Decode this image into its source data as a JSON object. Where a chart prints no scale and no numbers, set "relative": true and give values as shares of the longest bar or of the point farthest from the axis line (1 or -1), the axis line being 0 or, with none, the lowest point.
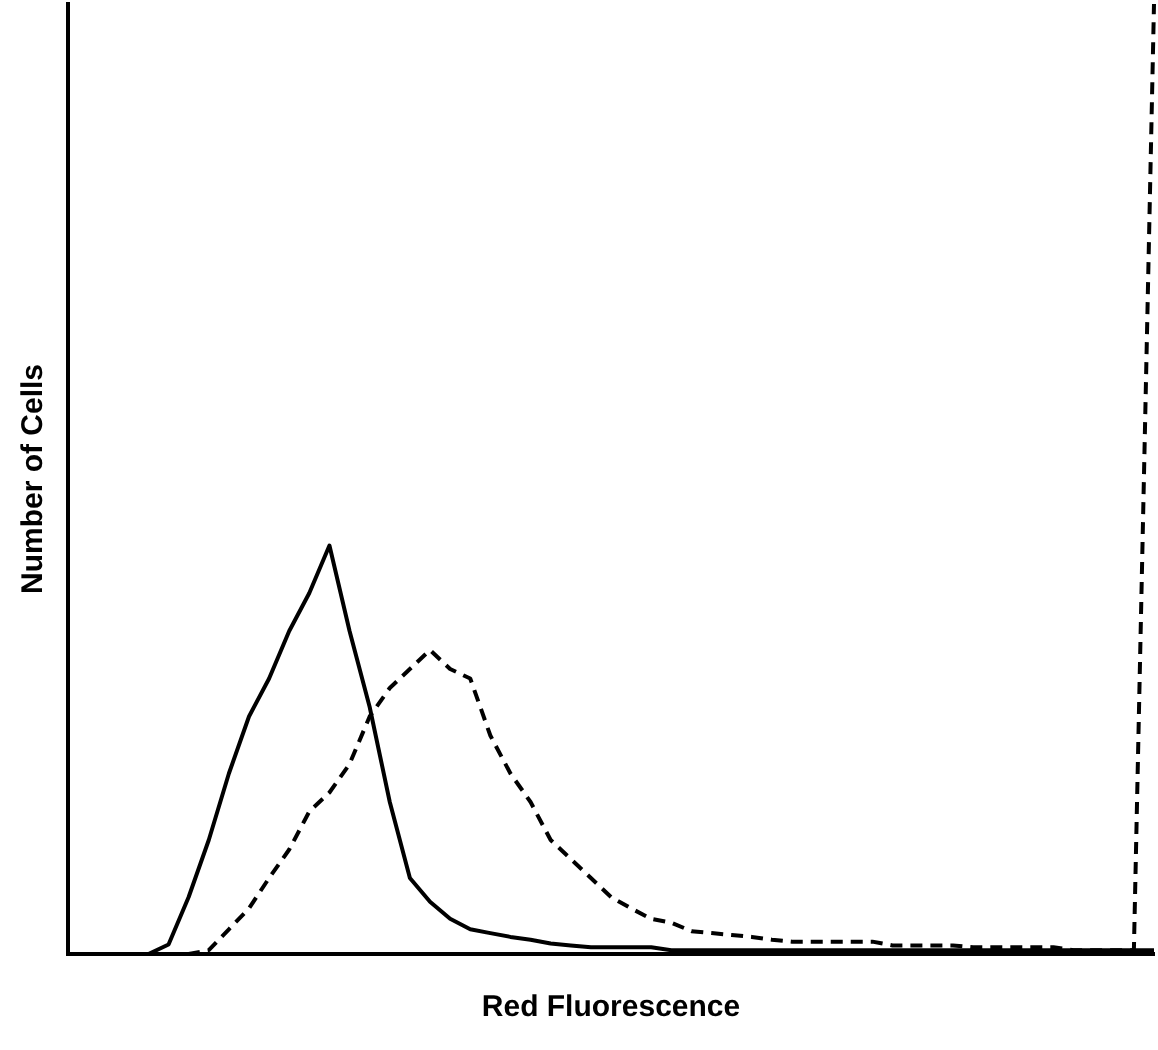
{
  "chart_data": {
    "type": "line",
    "relative": true,
    "xlabel": "Red Fluorescence",
    "ylabel": "Number of Cells",
    "grid": false,
    "legend": false,
    "marker": "none",
    "categories": [
      null,
      null,
      null,
      null,
      null,
      null,
      null,
      null,
      null,
      null,
      null,
      null,
      null,
      null,
      null,
      null,
      null,
      null,
      null,
      null,
      null,
      null,
      null,
      null,
      null,
      null,
      null,
      null,
      null,
      null,
      null,
      null,
      null,
      null,
      null,
      null,
      null,
      null,
      null,
      null,
      null,
      null,
      null,
      null,
      null,
      null,
      null,
      null,
      null,
      null,
      null,
      null,
      null,
      null,
      null
    ],
    "series": [
      {
        "color": "#000000",
        "line_style": "solid",
        "values": [
          0,
          0,
          0,
          0,
          0,
          0.01,
          0.06,
          0.12,
          0.19,
          0.25,
          0.29,
          0.34,
          0.38,
          0.43,
          0.34,
          0.26,
          0.16,
          0.08,
          0.055,
          0.037,
          0.026,
          0.022,
          0.018,
          0.015,
          0.011,
          0.009,
          0.007,
          0.007,
          0.007,
          0.007,
          0.004,
          0.004,
          0.004,
          0.004,
          0.004,
          0.004,
          0.004,
          0.004,
          0.004,
          0.004,
          0.004,
          0.004,
          0.004,
          0.004,
          0.004,
          0.004,
          0.004,
          0.004,
          0.004,
          0.004,
          0.004,
          0.004,
          0.004,
          0.004,
          0.004
        ]
      },
      {
        "color": "#000000",
        "line_style": "dashed",
        "values": [
          0,
          0,
          0,
          0,
          0,
          0,
          0,
          0.004,
          0.026,
          0.048,
          0.08,
          0.11,
          0.15,
          0.17,
          0.2,
          0.25,
          0.28,
          0.3,
          0.32,
          0.3,
          0.29,
          0.23,
          0.19,
          0.16,
          0.12,
          0.1,
          0.08,
          0.06,
          0.048,
          0.037,
          0.033,
          0.024,
          0.022,
          0.02,
          0.018,
          0.015,
          0.013,
          0.013,
          0.013,
          0.013,
          0.013,
          0.009,
          0.009,
          0.009,
          0.009,
          0.007,
          0.007,
          0.007,
          0.007,
          0.007,
          0.004,
          0.004,
          0.004,
          0.004,
          1
        ]
      }
    ]
  }
}
